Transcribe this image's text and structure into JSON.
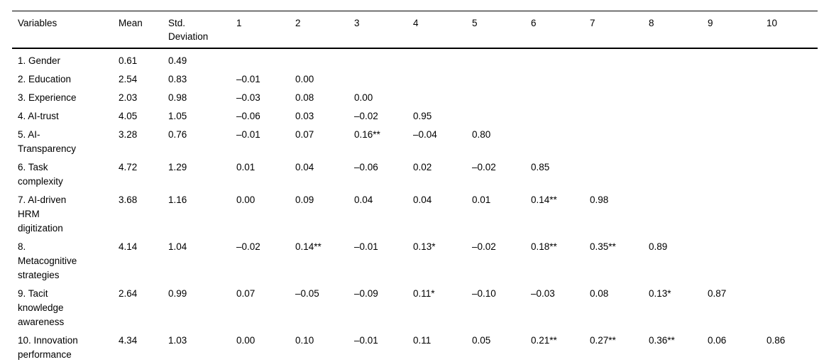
{
  "table": {
    "columns": [
      "Variables",
      "Mean",
      "Std.\nDeviation",
      "1",
      "2",
      "3",
      "4",
      "5",
      "6",
      "7",
      "8",
      "9",
      "10"
    ],
    "rows": [
      {
        "label": "1. Gender",
        "mean": "0.61",
        "sd": "0.49",
        "correlations": [
          "",
          "",
          "",
          "",
          "",
          "",
          "",
          "",
          "",
          ""
        ]
      },
      {
        "label": "2. Education",
        "mean": "2.54",
        "sd": "0.83",
        "correlations": [
          "–0.01",
          "0.00",
          "",
          "",
          "",
          "",
          "",
          "",
          "",
          ""
        ]
      },
      {
        "label": "3. Experience",
        "mean": "2.03",
        "sd": "0.98",
        "correlations": [
          "–0.03",
          "0.08",
          "0.00",
          "",
          "",
          "",
          "",
          "",
          "",
          ""
        ]
      },
      {
        "label": "4. AI-trust",
        "mean": "4.05",
        "sd": "1.05",
        "correlations": [
          "–0.06",
          "0.03",
          "–0.02",
          "0.95",
          "",
          "",
          "",
          "",
          "",
          ""
        ]
      },
      {
        "label": "5. AI-\nTransparency",
        "mean": "3.28",
        "sd": "0.76",
        "correlations": [
          "–0.01",
          "0.07",
          "0.16**",
          "–0.04",
          "0.80",
          "",
          "",
          "",
          "",
          ""
        ]
      },
      {
        "label": "6. Task\ncomplexity",
        "mean": "4.72",
        "sd": "1.29",
        "correlations": [
          "0.01",
          "0.04",
          "–0.06",
          "0.02",
          "–0.02",
          "0.85",
          "",
          "",
          "",
          ""
        ]
      },
      {
        "label": "7. AI-driven\nHRM\ndigitization",
        "mean": "3.68",
        "sd": "1.16",
        "correlations": [
          "0.00",
          "0.09",
          "0.04",
          "0.04",
          "0.01",
          "0.14**",
          "0.98",
          "",
          "",
          ""
        ]
      },
      {
        "label": "8.\nMetacognitive\nstrategies",
        "mean": "4.14",
        "sd": "1.04",
        "correlations": [
          "–0.02",
          "0.14**",
          "–0.01",
          "0.13*",
          "–0.02",
          "0.18**",
          "0.35**",
          "0.89",
          "",
          ""
        ]
      },
      {
        "label": "9. Tacit\nknowledge\nawareness",
        "mean": "2.64",
        "sd": "0.99",
        "correlations": [
          "0.07",
          "–0.05",
          "–0.09",
          "0.11*",
          "–0.10",
          "–0.03",
          "0.08",
          "0.13*",
          "0.87",
          ""
        ]
      },
      {
        "label": "10. Innovation\nperformance",
        "mean": "4.34",
        "sd": "1.03",
        "correlations": [
          "0.00",
          "0.10",
          "–0.01",
          "0.11",
          "0.05",
          "0.21**",
          "0.27**",
          "0.36**",
          "0.06",
          "0.86"
        ]
      }
    ]
  }
}
